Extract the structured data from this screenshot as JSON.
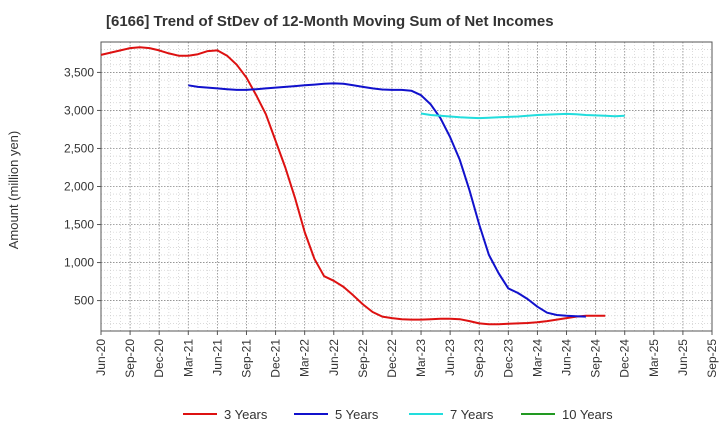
{
  "chart_data": {
    "type": "line",
    "title": "[6166]  Trend of StDev of 12-Month Moving Sum of Net Incomes",
    "ylabel": "Amount (million yen)",
    "xlabel": "",
    "x_ticks": [
      "Jun-20",
      "Sep-20",
      "Dec-20",
      "Mar-21",
      "Jun-21",
      "Sep-21",
      "Dec-21",
      "Mar-22",
      "Jun-22",
      "Sep-22",
      "Dec-22",
      "Mar-23",
      "Jun-23",
      "Sep-23",
      "Dec-23",
      "Mar-24",
      "Jun-24",
      "Sep-24",
      "Dec-24",
      "Mar-25",
      "Jun-25",
      "Sep-25"
    ],
    "y_ticks": [
      500,
      1000,
      1500,
      2000,
      2500,
      3000,
      3500
    ],
    "y_tick_labels": [
      "500",
      "1,000",
      "1,500",
      "2,000",
      "2,500",
      "3,000",
      "3,500"
    ],
    "ylim": [
      100,
      3900
    ],
    "grid": true,
    "legend_position": "bottom",
    "series": [
      {
        "name": "3 Years",
        "color": "#dd1111",
        "start": "Jun-20",
        "values": [
          3730,
          3760,
          3790,
          3820,
          3830,
          3820,
          3790,
          3750,
          3720,
          3720,
          3740,
          3780,
          3790,
          3720,
          3600,
          3430,
          3200,
          2950,
          2600,
          2250,
          1850,
          1400,
          1050,
          820,
          760,
          680,
          570,
          450,
          350,
          290,
          270,
          255,
          250,
          250,
          255,
          260,
          260,
          255,
          230,
          200,
          190,
          190,
          195,
          200,
          205,
          215,
          230,
          250,
          270,
          290,
          300,
          300,
          300
        ]
      },
      {
        "name": "5 Years",
        "color": "#1111cc",
        "start": "Mar-21",
        "values": [
          3330,
          3310,
          3300,
          3290,
          3280,
          3270,
          3270,
          3280,
          3290,
          3300,
          3310,
          3320,
          3330,
          3340,
          3350,
          3355,
          3350,
          3330,
          3310,
          3290,
          3275,
          3270,
          3270,
          3260,
          3200,
          3080,
          2900,
          2650,
          2350,
          1950,
          1500,
          1100,
          860,
          660,
          600,
          520,
          420,
          340,
          310,
          300,
          295,
          290
        ]
      },
      {
        "name": "7 Years",
        "color": "#22dddd",
        "start": "Mar-23",
        "values": [
          2960,
          2940,
          2930,
          2920,
          2910,
          2905,
          2900,
          2905,
          2910,
          2915,
          2920,
          2930,
          2940,
          2945,
          2950,
          2955,
          2950,
          2940,
          2935,
          2930,
          2925,
          2930
        ]
      },
      {
        "name": "10 Years",
        "color": "#229922",
        "start": "",
        "values": []
      }
    ]
  }
}
